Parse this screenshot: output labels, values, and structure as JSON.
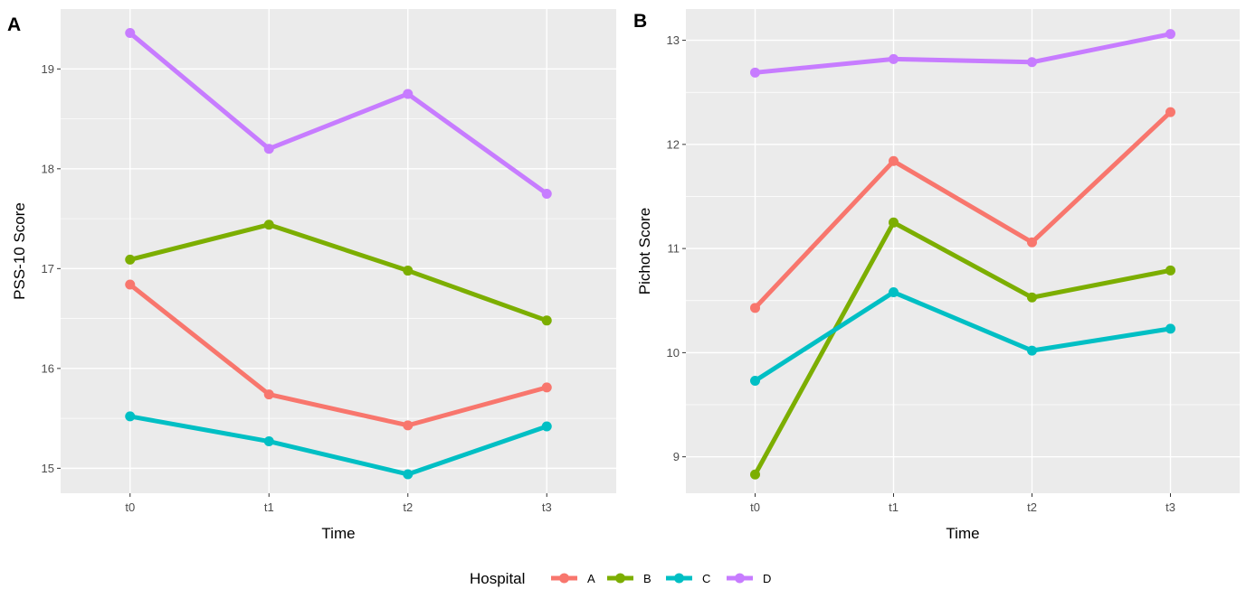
{
  "chart_data": [
    {
      "type": "line",
      "panel_tag": "A",
      "xlabel": "Time",
      "ylabel": "PSS-10 Score",
      "categories": [
        "t0",
        "t1",
        "t2",
        "t3"
      ],
      "ylim": [
        14.75,
        19.6
      ],
      "yticks": [
        15,
        16,
        17,
        18,
        19
      ],
      "grid": true,
      "series": [
        {
          "name": "A",
          "color": "#F8766D",
          "values": [
            16.84,
            15.74,
            15.43,
            15.81
          ]
        },
        {
          "name": "B",
          "color": "#7CAE00",
          "values": [
            17.09,
            17.44,
            16.98,
            16.48
          ]
        },
        {
          "name": "C",
          "color": "#00BFC4",
          "values": [
            15.52,
            15.27,
            14.94,
            15.42
          ]
        },
        {
          "name": "D",
          "color": "#C77CFF",
          "values": [
            19.36,
            18.2,
            18.75,
            17.75
          ]
        }
      ]
    },
    {
      "type": "line",
      "panel_tag": "B",
      "xlabel": "Time",
      "ylabel": "Pichot Score",
      "categories": [
        "t0",
        "t1",
        "t2",
        "t3"
      ],
      "ylim": [
        8.65,
        13.3
      ],
      "yticks": [
        9,
        10,
        11,
        12,
        13
      ],
      "grid": true,
      "series": [
        {
          "name": "A",
          "color": "#F8766D",
          "values": [
            10.43,
            11.84,
            11.06,
            12.31
          ]
        },
        {
          "name": "B",
          "color": "#7CAE00",
          "values": [
            8.83,
            11.25,
            10.53,
            10.79
          ]
        },
        {
          "name": "C",
          "color": "#00BFC4",
          "values": [
            9.73,
            10.58,
            10.02,
            10.23
          ]
        },
        {
          "name": "D",
          "color": "#C77CFF",
          "values": [
            12.69,
            12.82,
            12.79,
            13.06
          ]
        }
      ]
    }
  ],
  "legend": {
    "title": "Hospital",
    "position": "bottom",
    "items": [
      {
        "label": "A",
        "color": "#F8766D"
      },
      {
        "label": "B",
        "color": "#7CAE00"
      },
      {
        "label": "C",
        "color": "#00BFC4"
      },
      {
        "label": "D",
        "color": "#C77CFF"
      }
    ]
  },
  "colors": {
    "panel_bg": "#EBEBEB",
    "grid": "#FFFFFF",
    "tick_text": "#4D4D4D"
  }
}
